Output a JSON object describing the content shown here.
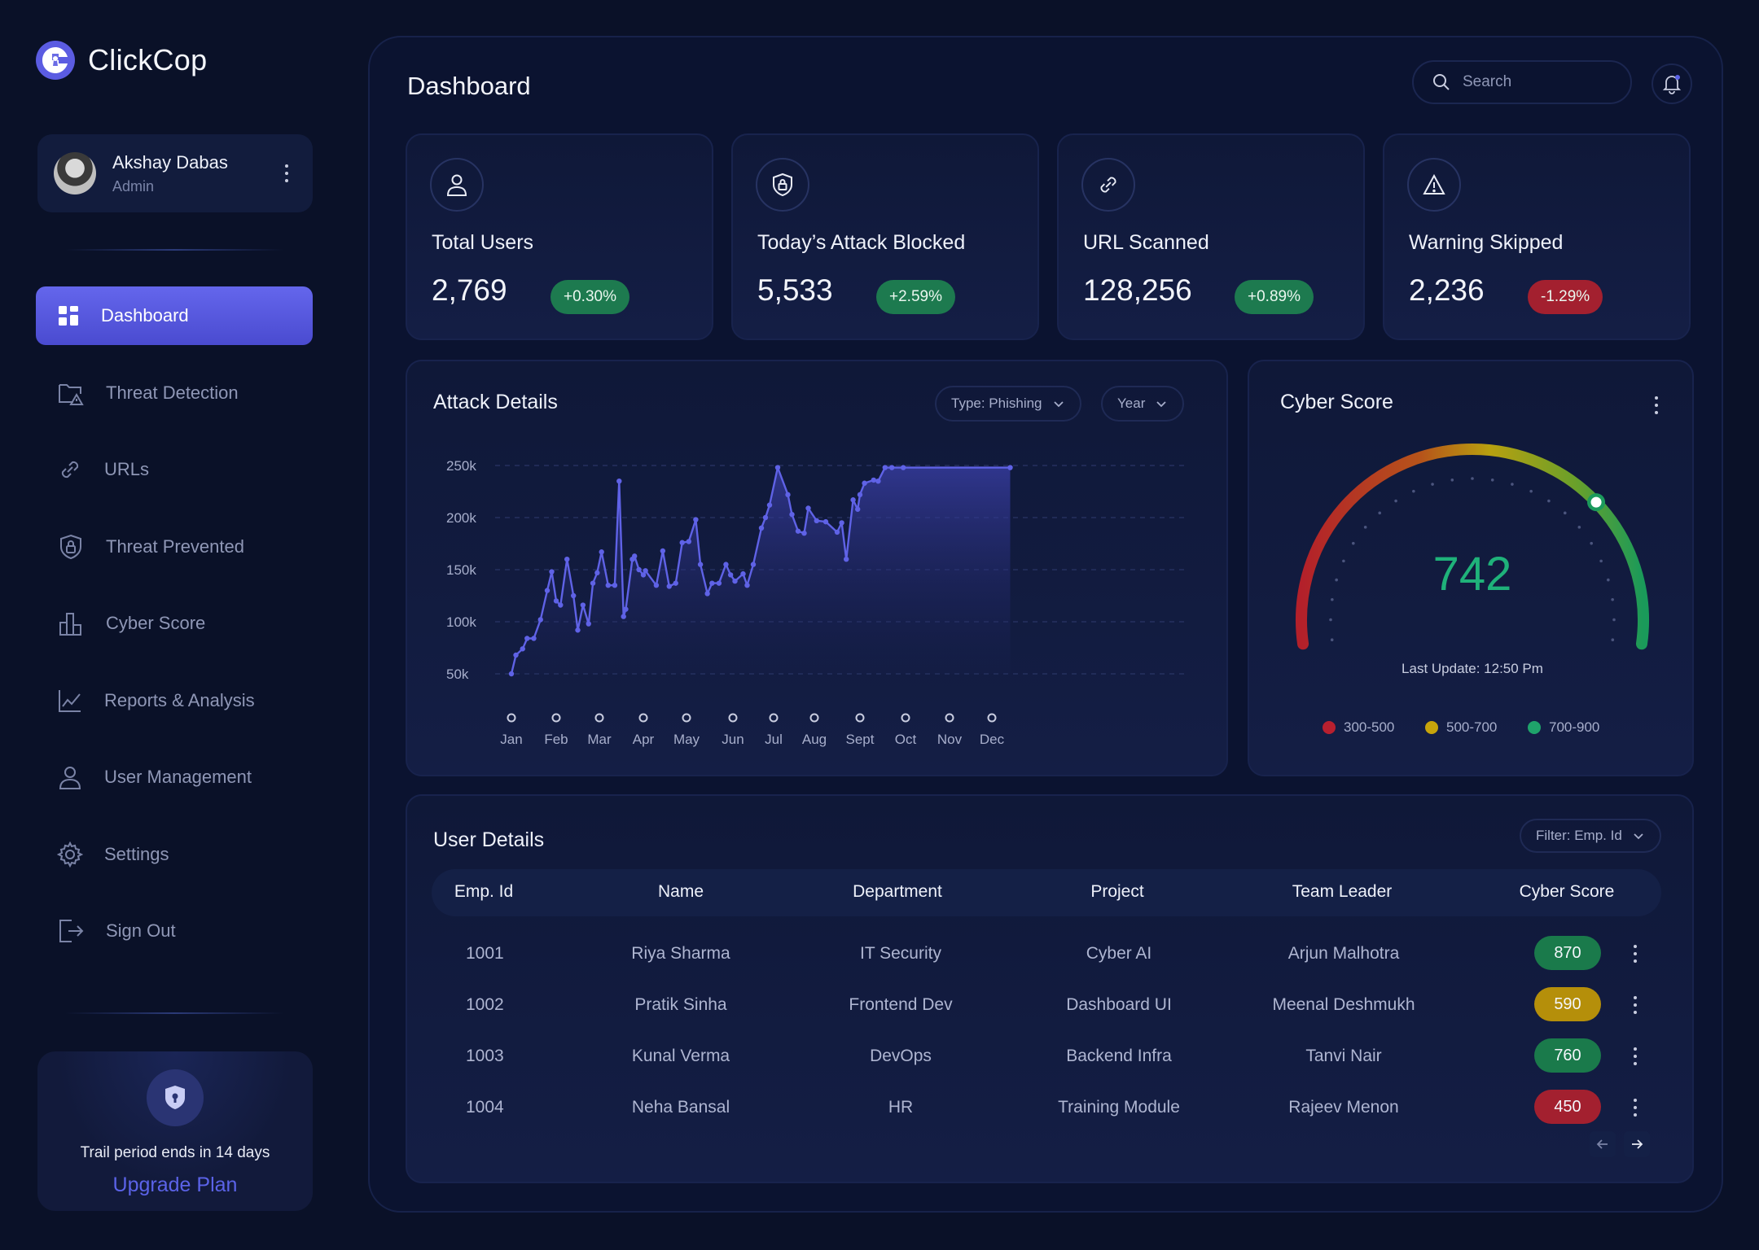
{
  "app": {
    "name": "ClickCop"
  },
  "user": {
    "name": "Akshay Dabas",
    "role": "Admin"
  },
  "nav": [
    {
      "label": "Dashboard",
      "icon": "grid-icon"
    },
    {
      "label": "Threat Detection",
      "icon": "folder-alert-icon"
    },
    {
      "label": "URLs",
      "icon": "link-icon"
    },
    {
      "label": "Threat Prevented",
      "icon": "shield-lock-icon"
    },
    {
      "label": "Cyber Score",
      "icon": "bar-chart-icon"
    },
    {
      "label": "Reports & Analysis",
      "icon": "line-chart-icon"
    },
    {
      "label": "User Management",
      "icon": "user-icon"
    },
    {
      "label": "Settings",
      "icon": "gear-icon"
    },
    {
      "label": "Sign Out",
      "icon": "sign-out-icon"
    }
  ],
  "trial": {
    "text": "Trail period ends in 14 days",
    "cta": "Upgrade Plan"
  },
  "header": {
    "title": "Dashboard",
    "search_placeholder": "Search"
  },
  "stats": [
    {
      "label": "Total Users",
      "value": "2,769",
      "change": "+0.30%",
      "trend": "up",
      "icon": "user-icon"
    },
    {
      "label": "Today’s Attack Blocked",
      "value": "5,533",
      "change": "+2.59%",
      "trend": "up",
      "icon": "shield-lock-icon"
    },
    {
      "label": "URL Scanned",
      "value": "128,256",
      "change": "+0.89%",
      "trend": "up",
      "icon": "link-icon"
    },
    {
      "label": "Warning Skipped",
      "value": "2,236",
      "change": "-1.29%",
      "trend": "down",
      "icon": "warning-icon"
    }
  ],
  "attack": {
    "title": "Attack Details",
    "filter_type": "Type: Phishing",
    "filter_period": "Year"
  },
  "chart_data": {
    "type": "area",
    "title": "Attack Details",
    "categories": [
      "Jan",
      "Feb",
      "Mar",
      "Apr",
      "May",
      "Jun",
      "Jul",
      "Aug",
      "Sept",
      "Oct",
      "Nov",
      "Dec"
    ],
    "y_ticks": [
      "250k",
      "200k",
      "150k",
      "100k",
      "50k"
    ],
    "ylim": [
      50000,
      250000
    ],
    "grid": true,
    "series": [
      {
        "x": [
          0,
          0.1,
          0.25,
          0.35,
          0.5,
          0.65,
          0.8,
          0.9,
          1.0,
          1.1,
          1.25,
          1.4,
          1.5,
          1.62,
          1.75,
          1.85,
          1.95,
          2.05,
          2.2,
          2.35,
          2.45,
          2.55,
          2.6,
          2.75,
          2.8,
          2.9,
          3.0,
          3.05,
          3.3,
          3.45,
          3.6,
          3.75,
          3.9,
          4.05,
          4.2,
          4.3,
          4.45,
          4.55,
          4.7,
          4.85,
          4.95,
          5.05,
          5.25,
          5.35,
          5.5,
          5.7,
          5.8,
          5.9,
          6.1,
          6.35,
          6.45,
          6.6,
          6.75,
          6.85,
          7.05,
          7.25,
          7.5,
          7.6,
          7.7,
          7.85,
          7.95,
          8.0,
          8.1,
          8.3,
          8.4,
          8.55,
          8.7,
          8.95,
          9.25,
          9.4,
          9.5,
          9.85,
          10.15,
          10.3,
          10.5,
          10.6,
          10.85,
          11.05,
          11.35,
          11.45
        ],
        "values": [
          50000,
          68000,
          74000,
          84000,
          84000,
          102000,
          130000,
          148000,
          120000,
          116000,
          160000,
          125000,
          92000,
          116000,
          98000,
          137000,
          147000,
          167000,
          135000,
          135000,
          235000,
          105000,
          112000,
          160000,
          163000,
          150000,
          145000,
          149000,
          135000,
          168000,
          134000,
          137000,
          176000,
          177000,
          198000,
          155000,
          127000,
          137000,
          137000,
          155000,
          145000,
          139000,
          146000,
          135000,
          155000,
          190000,
          200000,
          212000,
          248000,
          222000,
          203000,
          187000,
          185000,
          209000,
          197000,
          196000,
          186000,
          195000,
          160000,
          217000,
          208000,
          222000,
          233000,
          236000,
          235000,
          248000,
          248000,
          248000,
          248000,
          248000,
          248000,
          248000,
          248000,
          248000,
          248000,
          248000,
          248000,
          248000,
          248000,
          248000
        ]
      }
    ]
  },
  "cyber": {
    "title": "Cyber Score",
    "score": "742",
    "score_value": 742,
    "score_min": 300,
    "score_max": 900,
    "updated": "Last Update: 12:50 Pm",
    "legend": [
      {
        "label": "300-500",
        "color": "#b8202f"
      },
      {
        "label": "500-700",
        "color": "#c7a40b"
      },
      {
        "label": "700-900",
        "color": "#1fa36b"
      }
    ]
  },
  "users": {
    "title": "User Details",
    "filter": "Filter: Emp. Id",
    "columns": [
      "Emp. Id",
      "Name",
      "Department",
      "Project",
      "Team Leader",
      "Cyber Score"
    ],
    "rows": [
      {
        "id": "1001",
        "name": "Riya Sharma",
        "dept": "IT Security",
        "project": "Cyber AI",
        "leader": "Arjun Malhotra",
        "score": "870",
        "color": "#1a7a4b"
      },
      {
        "id": "1002",
        "name": "Pratik Sinha",
        "dept": "Frontend Dev",
        "project": "Dashboard UI",
        "leader": "Meenal Deshmukh",
        "score": "590",
        "color": "#b58f0a"
      },
      {
        "id": "1003",
        "name": "Kunal Verma",
        "dept": "DevOps",
        "project": "Backend Infra",
        "leader": "Tanvi Nair",
        "score": "760",
        "color": "#1a7a4b"
      },
      {
        "id": "1004",
        "name": "Neha Bansal",
        "dept": "HR",
        "project": "Training Module",
        "leader": "Rajeev Menon",
        "score": "450",
        "color": "#a3202f"
      }
    ]
  },
  "colors": {
    "accent": "#5b5ce2",
    "background": "#0a1128",
    "positive": "#1d7a4f",
    "negative": "#a3202f"
  }
}
